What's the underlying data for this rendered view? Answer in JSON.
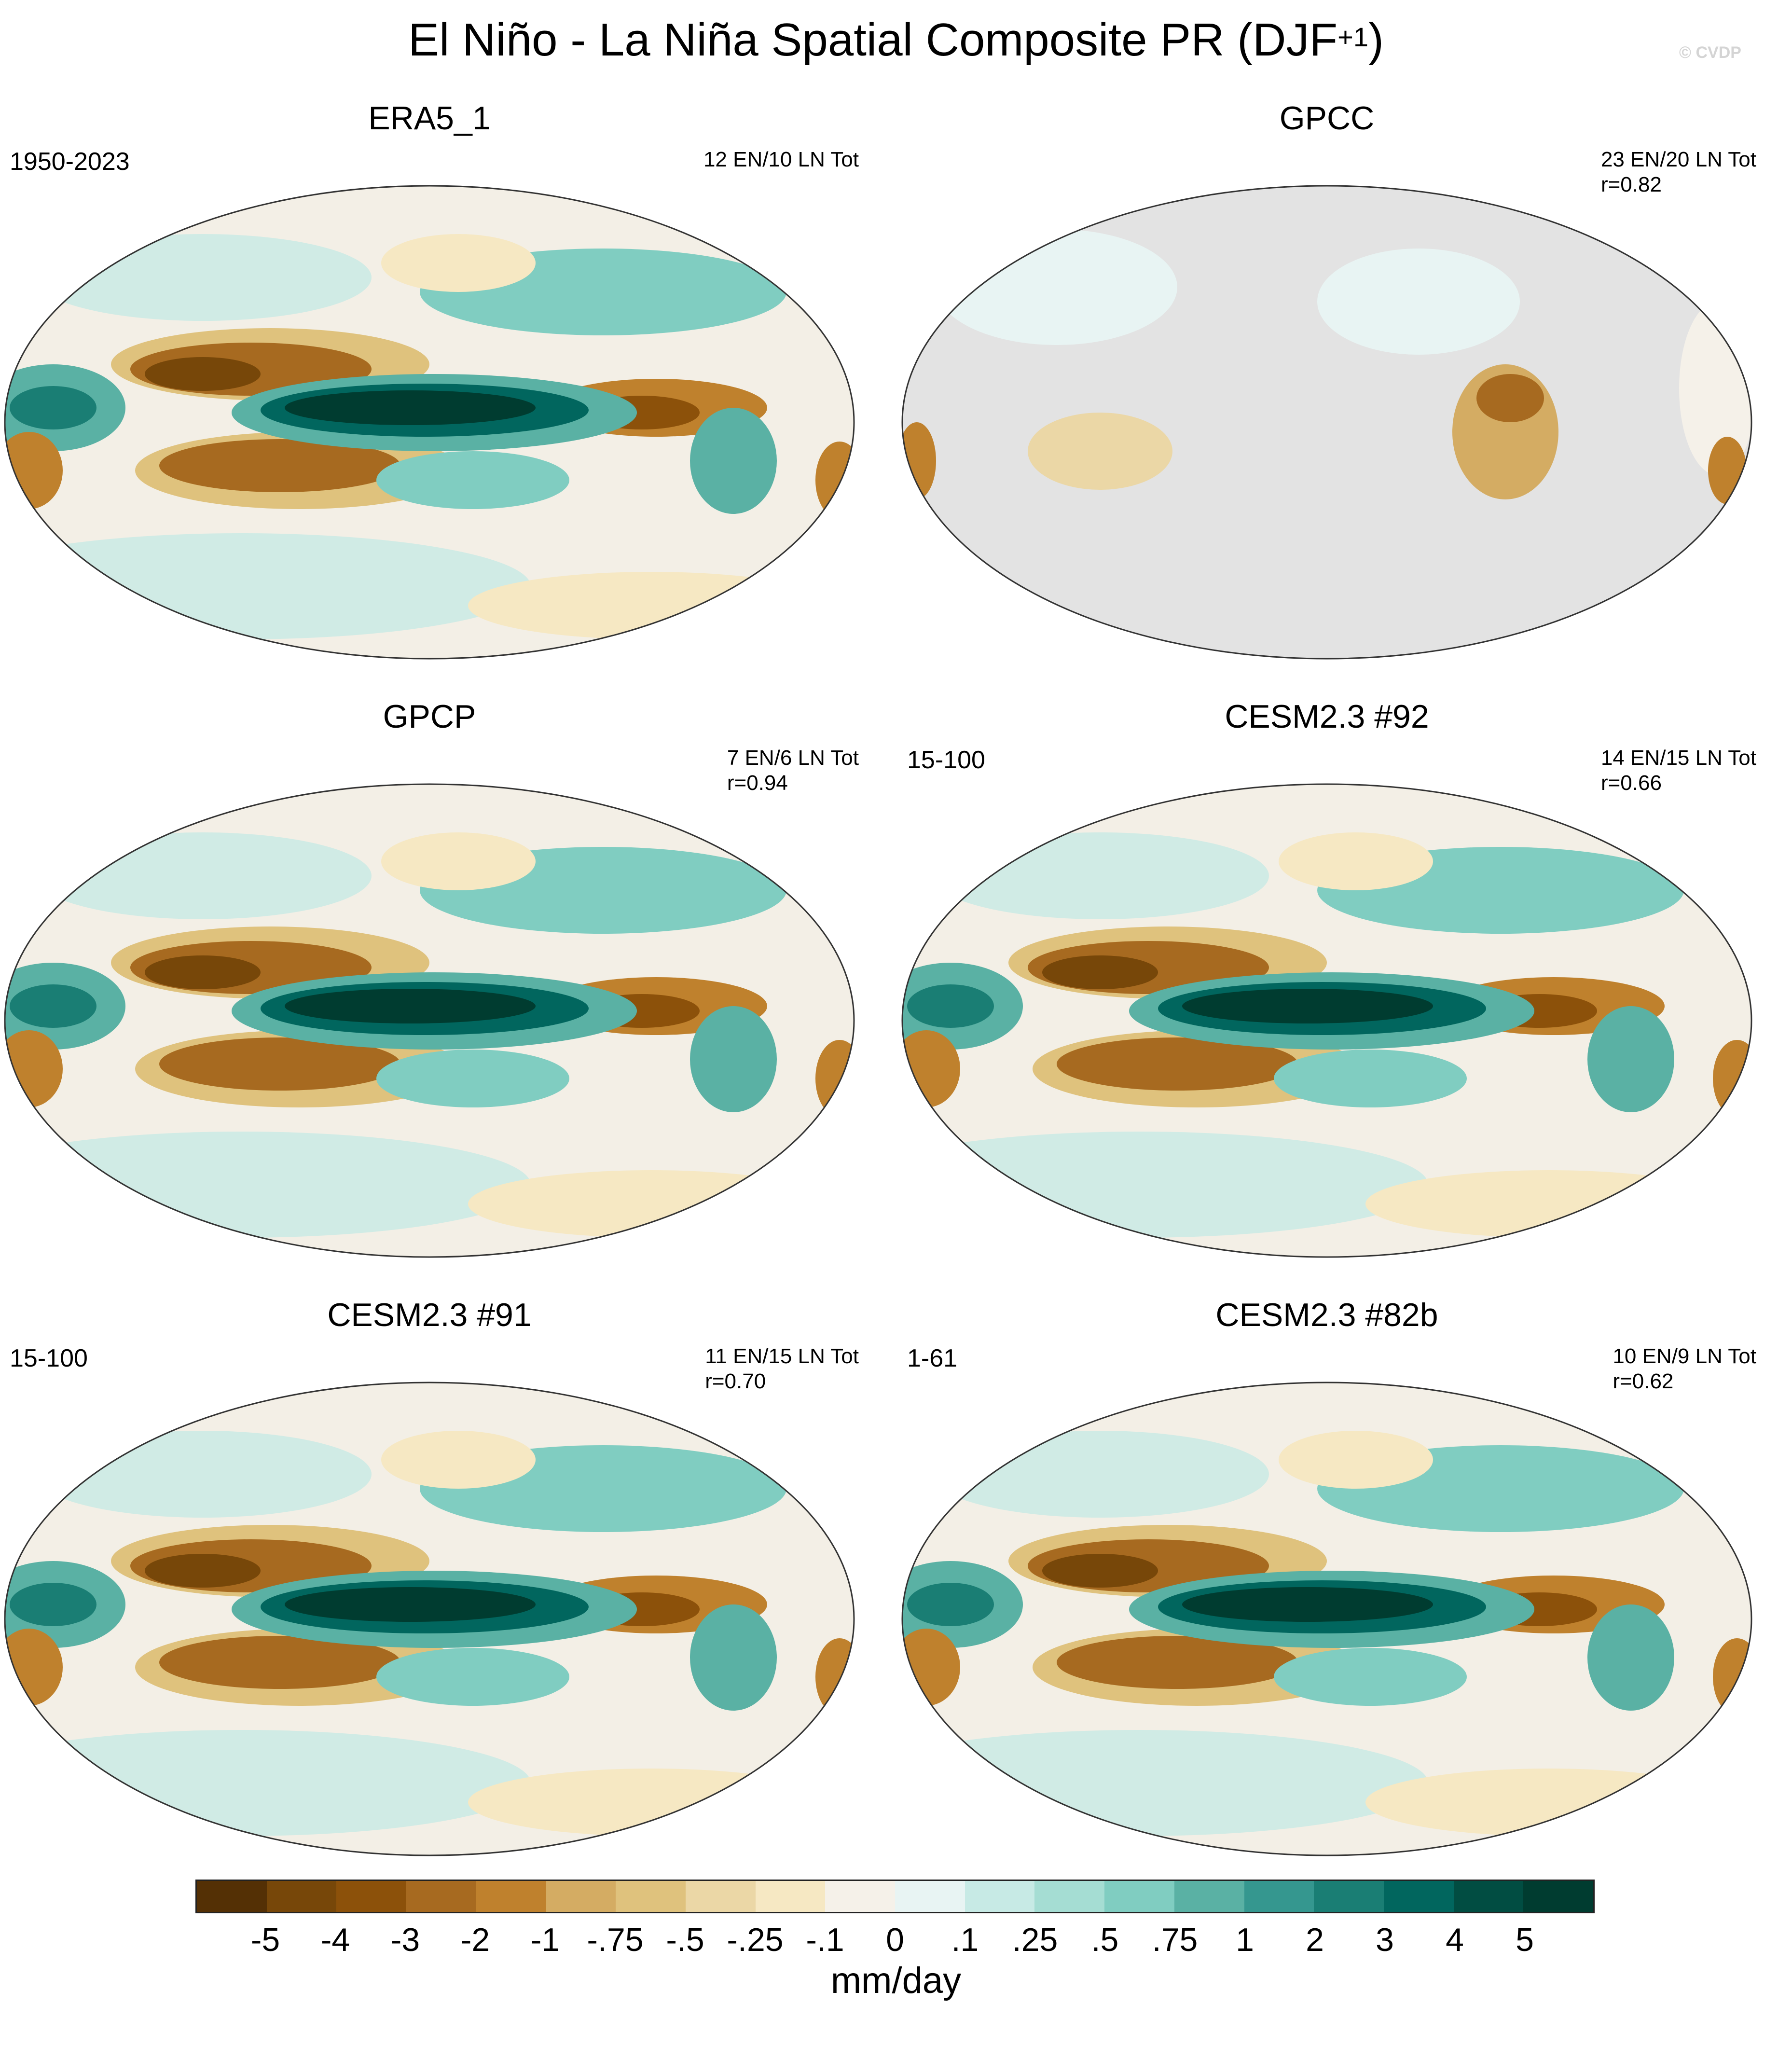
{
  "figure": {
    "title_main": "El Niño - La Niña Spatial Composite PR (DJF",
    "title_sup": "+1",
    "title_end": ")",
    "copyright": "© CVDP"
  },
  "panels": [
    {
      "title": "ERA5_1",
      "left_label": "1950-2023",
      "right_line1": "12 EN/10 LN Tot",
      "right_line2": "",
      "land_only": false
    },
    {
      "title": "GPCC",
      "left_label": "",
      "right_line1": "23 EN/20 LN Tot",
      "right_line2": "r=0.82",
      "land_only": true
    },
    {
      "title": "GPCP",
      "left_label": "",
      "right_line1": "7 EN/6 LN Tot",
      "right_line2": "r=0.94",
      "land_only": false
    },
    {
      "title": "CESM2.3 #92",
      "left_label": "15-100",
      "right_line1": "14 EN/15 LN Tot",
      "right_line2": "r=0.66",
      "land_only": false
    },
    {
      "title": "CESM2.3 #91",
      "left_label": "15-100",
      "right_line1": "11 EN/15 LN Tot",
      "right_line2": "r=0.70",
      "land_only": false
    },
    {
      "title": "CESM2.3 #82b",
      "left_label": "1-61",
      "right_line1": "10 EN/9 LN Tot",
      "right_line2": "r=0.62",
      "land_only": false
    }
  ],
  "colorbar": {
    "units": "mm/day",
    "tick_labels": [
      "-5",
      "-4",
      "-3",
      "-2",
      "-1",
      "-.75",
      "-.5",
      "-.25",
      "-.1",
      "0",
      ".1",
      ".25",
      ".5",
      ".75",
      "1",
      "2",
      "3",
      "4",
      "5"
    ],
    "colors": [
      "#543005",
      "#774709",
      "#8c510a",
      "#a76a20",
      "#bf812d",
      "#d4ac63",
      "#dfc27d",
      "#ebd7a6",
      "#f6e8c3",
      "#f5f1e9",
      "#e8f4f3",
      "#c7eae5",
      "#a5ddd3",
      "#80cdc1",
      "#5ab1a4",
      "#35978f",
      "#1a7e74",
      "#01665e",
      "#014d42",
      "#003c30"
    ]
  },
  "chart_data": {
    "type": "heatmap",
    "title": "El Niño - La Niña Spatial Composite PR (DJF+1)",
    "units": "mm/day",
    "contour_levels": [
      -5,
      -4,
      -3,
      -2,
      -1,
      -0.75,
      -0.5,
      -0.25,
      -0.1,
      0,
      0.1,
      0.25,
      0.5,
      0.75,
      1,
      2,
      3,
      4,
      5
    ],
    "panels": [
      {
        "name": "ERA5_1",
        "period": "1950-2023",
        "el_nino_events": 12,
        "la_nina_events": 10
      },
      {
        "name": "GPCC",
        "el_nino_events": 23,
        "la_nina_events": 20,
        "pattern_correlation": 0.82
      },
      {
        "name": "GPCP",
        "el_nino_events": 7,
        "la_nina_events": 6,
        "pattern_correlation": 0.94
      },
      {
        "name": "CESM2.3 #92",
        "period": "15-100",
        "el_nino_events": 14,
        "la_nina_events": 15,
        "pattern_correlation": 0.66
      },
      {
        "name": "CESM2.3 #91",
        "period": "15-100",
        "el_nino_events": 11,
        "la_nina_events": 15,
        "pattern_correlation": 0.7
      },
      {
        "name": "CESM2.3 #82b",
        "period": "1-61",
        "el_nino_events": 10,
        "la_nina_events": 9,
        "pattern_correlation": 0.62
      }
    ]
  }
}
